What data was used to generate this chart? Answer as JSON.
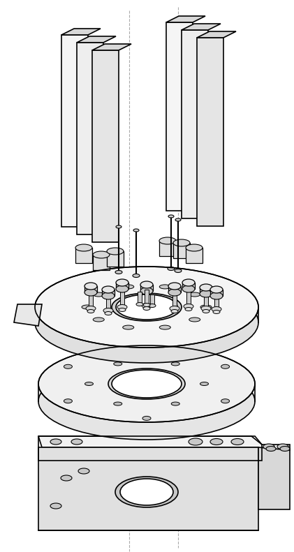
{
  "bg_color": "#ffffff",
  "line_color": "#000000",
  "fill_light": "#f0f0f0",
  "fill_mid": "#d8d8d8",
  "fill_dark": "#b0b0b0",
  "fill_white": "#ffffff",
  "dashed_color": "#aaaaaa",
  "figsize": [
    4.21,
    7.91
  ],
  "dpi": 100
}
